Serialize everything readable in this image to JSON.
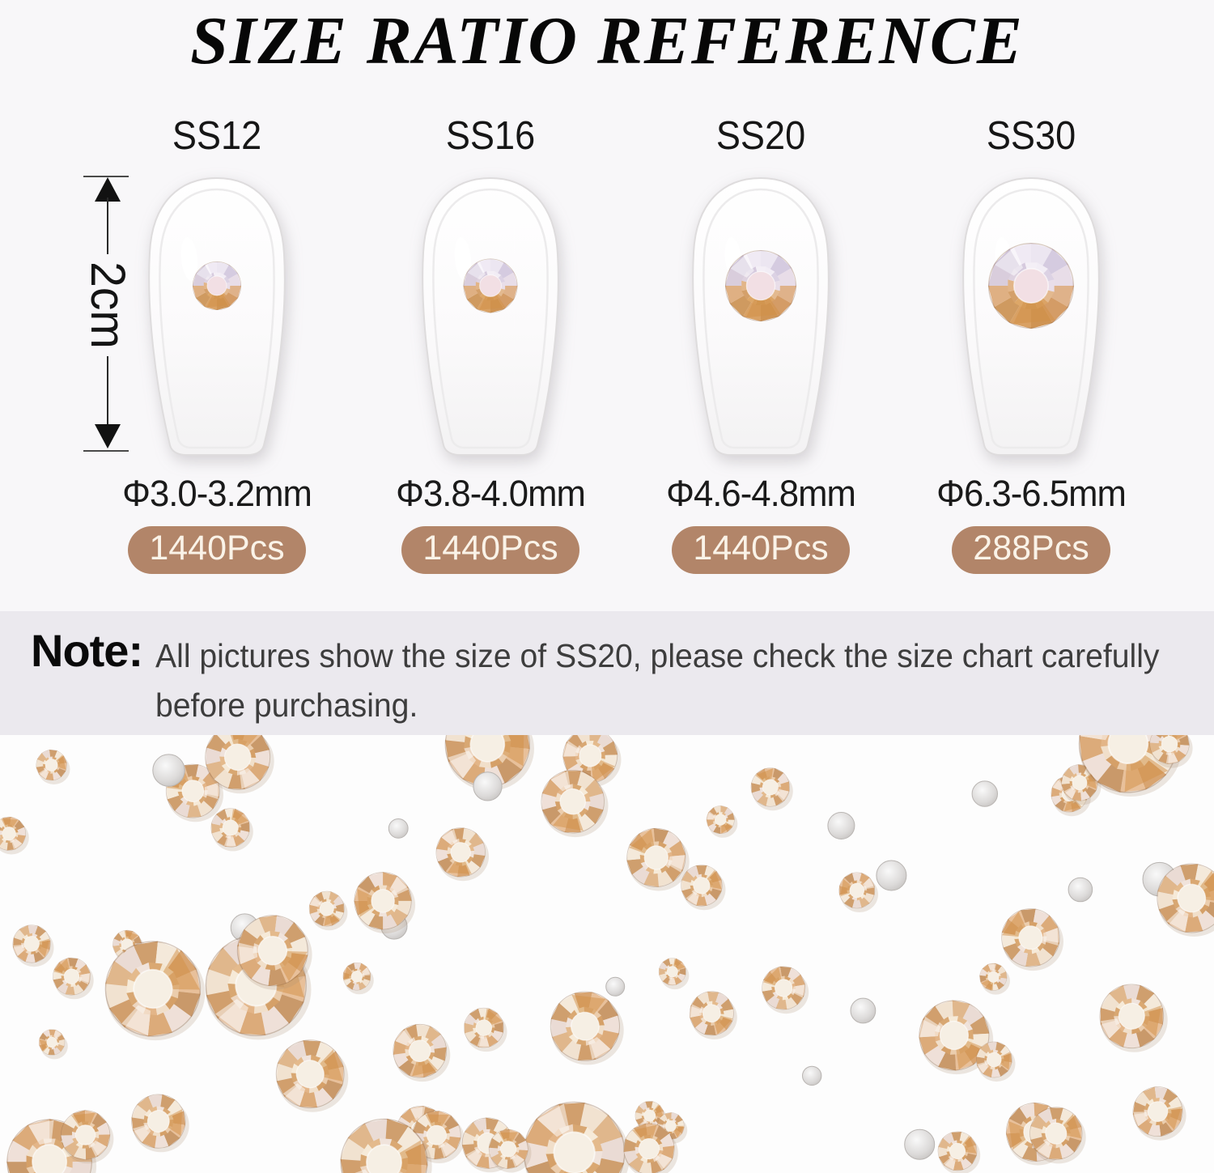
{
  "title": "SIZE RATIO REFERENCE",
  "ruler": {
    "label": "2cm"
  },
  "sizes": [
    {
      "label": "SS12",
      "diameter": "Φ3.0-3.2mm",
      "count": "1440Pcs"
    },
    {
      "label": "SS16",
      "diameter": "Φ3.8-4.0mm",
      "count": "1440Pcs"
    },
    {
      "label": "SS20",
      "diameter": "Φ4.6-4.8mm",
      "count": "1440Pcs"
    },
    {
      "label": "SS30",
      "diameter": "Φ6.3-6.5mm",
      "count": "288Pcs"
    }
  ],
  "note": {
    "heading": "Note:",
    "line1": "All pictures show the size of SS20, please check the size chart carefully",
    "line2": "before purchasing."
  },
  "colors": {
    "page_bg": "#f8f7f9",
    "note_bg": "#ebe9ee",
    "badge_bg": "#b28569",
    "badge_text": "#faf3e8",
    "gem_peach": "#e0b78c",
    "gem_gold": "#d29454",
    "gem_pale": "#f4e9da",
    "gem_lavender": "#d5cbe0",
    "flatback_silver": "#dcdad9"
  }
}
